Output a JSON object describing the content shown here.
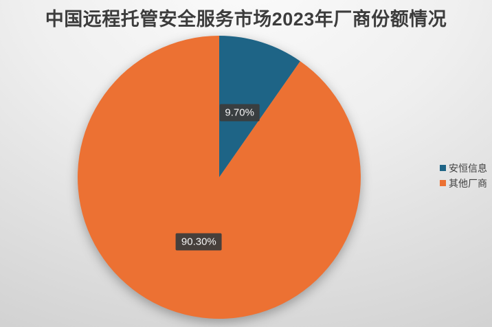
{
  "chart_data": {
    "type": "pie",
    "title": "中国远程托管安全服务市场2023年厂商份额情况",
    "series": [
      {
        "name": "安恒信息",
        "value": 9.7,
        "label": "9.70%",
        "color": "#1e6486"
      },
      {
        "name": "其他厂商",
        "value": 90.3,
        "label": "90.30%",
        "color": "#ec7133"
      }
    ],
    "start_angle_deg": 0,
    "direction": "clockwise",
    "legend_position": "right",
    "label_style": "dark-box-white-text",
    "background": {
      "center": "#fbfbfb",
      "edge": "#c6c6c6"
    },
    "title_color": "#3c3c3c",
    "legend_text_color": "#404040"
  }
}
